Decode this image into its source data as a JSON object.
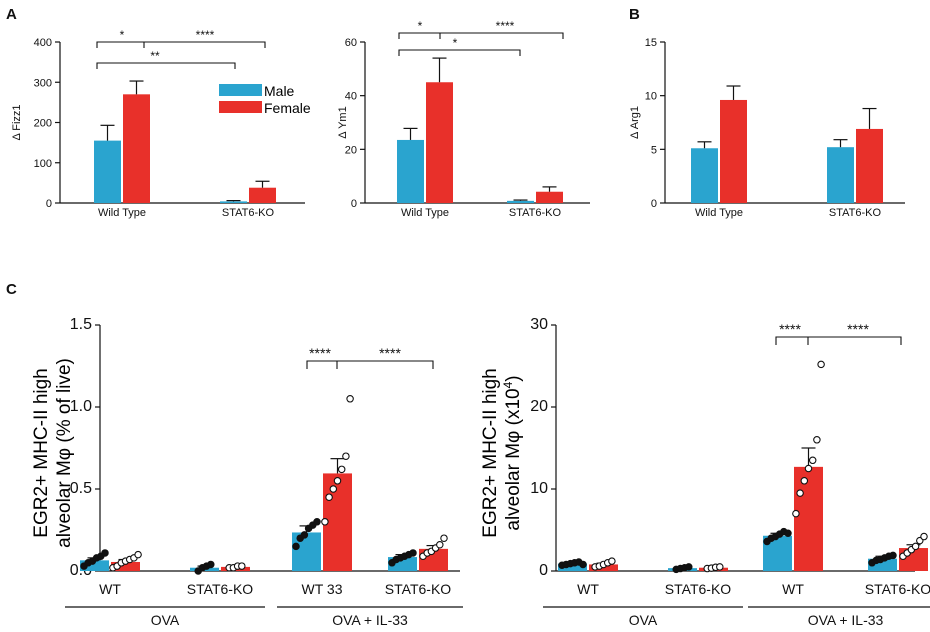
{
  "colors": {
    "male": "#2aa4cf",
    "female": "#e8302a"
  },
  "panel_labels": [
    "A",
    "B",
    "C"
  ],
  "legend": [
    "Male",
    "Female"
  ],
  "chart_data": [
    {
      "type": "bar",
      "id": "fizz1",
      "panel": "A",
      "ylabel": "Δ Fizz1",
      "ylim": [
        0,
        400
      ],
      "yticks": [
        0,
        100,
        200,
        300,
        400
      ],
      "categories": [
        "Wild Type",
        "STAT6-KO"
      ],
      "series": [
        {
          "name": "Male",
          "values": [
            155,
            4
          ],
          "errors": [
            38,
            2
          ]
        },
        {
          "name": "Female",
          "values": [
            270,
            38
          ],
          "errors": [
            33,
            16
          ]
        }
      ],
      "significance": [
        "*",
        "****",
        "**"
      ]
    },
    {
      "type": "bar",
      "id": "ym1",
      "panel": "A",
      "ylabel": "Δ Ym1",
      "ylim": [
        0,
        60
      ],
      "yticks": [
        0,
        20,
        40,
        60
      ],
      "categories": [
        "Wild Type",
        "STAT6-KO"
      ],
      "series": [
        {
          "name": "Male",
          "values": [
            23.5,
            0.8
          ],
          "errors": [
            4.3,
            0.3
          ]
        },
        {
          "name": "Female",
          "values": [
            45,
            4.2
          ],
          "errors": [
            9,
            1.8
          ]
        }
      ],
      "significance": [
        "*",
        "****",
        "*"
      ]
    },
    {
      "type": "bar",
      "id": "arg1",
      "panel": "B",
      "ylabel": "Δ Arg1",
      "ylim": [
        0,
        15
      ],
      "yticks": [
        0,
        5,
        10,
        15
      ],
      "categories": [
        "Wild Type",
        "STAT6-KO"
      ],
      "series": [
        {
          "name": "Male",
          "values": [
            5.1,
            5.2
          ],
          "errors": [
            0.6,
            0.7
          ]
        },
        {
          "name": "Female",
          "values": [
            9.6,
            6.9
          ],
          "errors": [
            1.3,
            1.9
          ]
        }
      ],
      "significance": []
    },
    {
      "type": "bar",
      "id": "pct",
      "panel": "C",
      "ylabel_lines": [
        "EGR2+ MHC-II high",
        "alveolar Mφ (% of live)"
      ],
      "ylim": [
        0,
        1.5
      ],
      "yticks": [
        "0.0",
        "0.5",
        "1.0",
        "1.5"
      ],
      "categories": [
        "WT",
        "STAT6-KO",
        "WT 33",
        "STAT6-KO"
      ],
      "groups": [
        "OVA",
        "OVA + IL-33"
      ],
      "series": [
        {
          "name": "Male",
          "values": [
            0.065,
            0.02,
            0.235,
            0.085
          ],
          "errors": [
            0.015,
            0.01,
            0.04,
            0.015
          ],
          "points": [
            [
              0.03,
              0.05,
              0.06,
              0.08,
              0.09,
              0.11
            ],
            [
              0.0,
              0.02,
              0.03,
              0.04
            ],
            [
              0.15,
              0.2,
              0.22,
              0.26,
              0.28,
              0.3
            ],
            [
              0.05,
              0.07,
              0.08,
              0.09,
              0.1,
              0.11
            ]
          ]
        },
        {
          "name": "Female",
          "values": [
            0.055,
            0.025,
            0.595,
            0.135
          ],
          "errors": [
            0.015,
            0.005,
            0.09,
            0.02
          ],
          "points": [
            [
              0.02,
              0.03,
              0.05,
              0.06,
              0.07,
              0.08,
              0.1
            ],
            [
              0.02,
              0.02,
              0.03,
              0.03
            ],
            [
              0.3,
              0.45,
              0.5,
              0.55,
              0.62,
              0.7,
              1.05
            ],
            [
              0.09,
              0.11,
              0.12,
              0.14,
              0.16,
              0.2
            ]
          ]
        }
      ],
      "significance": [
        "****",
        "****"
      ]
    },
    {
      "type": "bar",
      "id": "abs",
      "panel": "C",
      "ylabel_lines": [
        "EGR2+ MHC-II high",
        "alveolar Mφ (x10",
        "4",
        ")"
      ],
      "ylim": [
        0,
        30
      ],
      "yticks": [
        "0",
        "10",
        "20",
        "30"
      ],
      "categories": [
        "WT",
        "STAT6-KO",
        "WT",
        "STAT6-KO"
      ],
      "groups": [
        "OVA",
        "OVA + IL-33"
      ],
      "series": [
        {
          "name": "Male",
          "values": [
            0.9,
            0.35,
            4.3,
            1.5
          ],
          "errors": [
            0.15,
            0.1,
            0.3,
            0.3
          ],
          "points": [
            [
              0.7,
              0.8,
              0.9,
              1.0,
              1.1,
              0.8
            ],
            [
              0.2,
              0.3,
              0.4,
              0.5
            ],
            [
              3.6,
              4.0,
              4.2,
              4.5,
              4.8,
              4.6
            ],
            [
              1.0,
              1.3,
              1.4,
              1.6,
              1.8,
              1.9
            ]
          ]
        },
        {
          "name": "Female",
          "values": [
            0.8,
            0.4,
            12.7,
            2.8
          ],
          "errors": [
            0.15,
            0.05,
            2.3,
            0.4
          ],
          "points": [
            [
              0.5,
              0.6,
              0.8,
              1.0,
              1.2
            ],
            [
              0.3,
              0.35,
              0.45,
              0.5
            ],
            [
              7.0,
              9.5,
              11.0,
              12.5,
              13.5,
              16.0,
              25.2
            ],
            [
              1.8,
              2.2,
              2.6,
              3.0,
              3.7,
              4.2
            ]
          ]
        }
      ],
      "significance": [
        "****",
        "****"
      ]
    }
  ]
}
